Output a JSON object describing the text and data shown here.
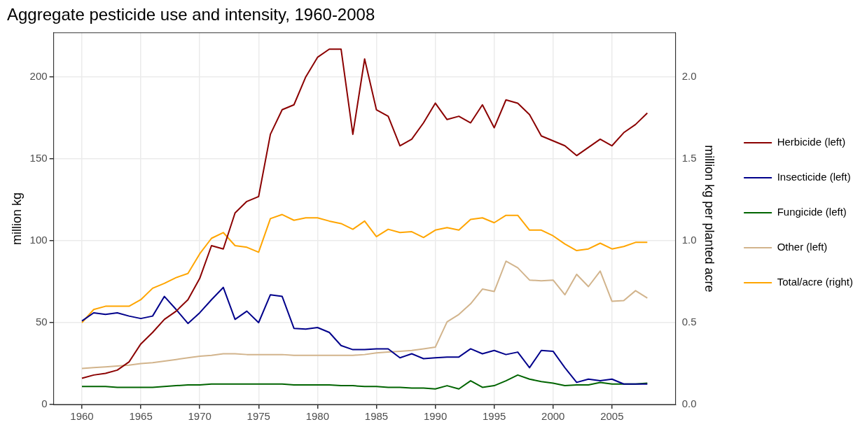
{
  "chart_data": {
    "type": "line",
    "title": "Aggregate pesticide use and intensity, 1960-2008",
    "ylabel": "million kg",
    "y2label": "million kg per planted acre",
    "x": [
      1960,
      1961,
      1962,
      1963,
      1964,
      1965,
      1966,
      1967,
      1968,
      1969,
      1970,
      1971,
      1972,
      1973,
      1974,
      1975,
      1976,
      1977,
      1978,
      1979,
      1980,
      1981,
      1982,
      1983,
      1984,
      1985,
      1986,
      1987,
      1988,
      1989,
      1990,
      1991,
      1992,
      1993,
      1994,
      1995,
      1996,
      1997,
      1998,
      1999,
      2000,
      2001,
      2002,
      2003,
      2004,
      2005,
      2006,
      2007,
      2008
    ],
    "series": [
      {
        "name": "Herbicide (left)",
        "color": "#8b0000",
        "values": [
          16,
          18,
          19,
          21,
          26,
          37,
          44,
          52,
          57,
          64,
          77,
          97,
          95,
          117,
          124,
          127,
          165,
          180,
          183,
          200,
          212,
          217,
          217,
          165,
          211,
          180,
          176,
          158,
          162,
          172,
          184,
          174,
          176,
          172,
          183,
          169,
          186,
          184,
          177,
          164,
          161,
          158,
          152,
          157,
          162,
          158,
          166,
          171,
          178
        ]
      },
      {
        "name": "Insecticide (left)",
        "color": "#00008b",
        "values": [
          51,
          56,
          55,
          56,
          54,
          52.5,
          54,
          66,
          58,
          49.5,
          56,
          64,
          71.5,
          52,
          57,
          50,
          67,
          66,
          46.5,
          46,
          47,
          44,
          36,
          33.5,
          33.5,
          34,
          34,
          28.5,
          31,
          28,
          28.5,
          29,
          29,
          34,
          31,
          33,
          30.5,
          32,
          22.5,
          33,
          32.5,
          22.5,
          13.5,
          15.5,
          14.5,
          15.5,
          12.5,
          12.5,
          12.5
        ]
      },
      {
        "name": "Fungicide (left)",
        "color": "#006400",
        "values": [
          11,
          11,
          11,
          10.5,
          10.5,
          10.5,
          10.5,
          11,
          11.5,
          12,
          12,
          12.5,
          12.5,
          12.5,
          12.5,
          12.5,
          12.5,
          12.5,
          12,
          12,
          12,
          12,
          11.5,
          11.5,
          11,
          11,
          10.5,
          10.5,
          10,
          10,
          9.5,
          11.5,
          9.5,
          14.5,
          10.5,
          11.5,
          14.5,
          18,
          15.5,
          14,
          13,
          11.5,
          12,
          12,
          13.5,
          12.5,
          12.5,
          12.5,
          13
        ]
      },
      {
        "name": "Other (left)",
        "color": "#d2b48c",
        "values": [
          22,
          22.5,
          23,
          23.5,
          24,
          25,
          25.5,
          26.5,
          27.5,
          28.5,
          29.5,
          30,
          31,
          31,
          30.5,
          30.5,
          30.5,
          30.5,
          30,
          30,
          30,
          30,
          30,
          30,
          30.5,
          31.5,
          32,
          32.5,
          33,
          34,
          35,
          50.5,
          55,
          61.5,
          70.5,
          69,
          87.5,
          83.5,
          76,
          75.5,
          76,
          67,
          79.5,
          72,
          81.5,
          63,
          63.5,
          69.5,
          65
        ]
      },
      {
        "name": "Total/acre (right)",
        "color": "#ffa500",
        "axis": "y2",
        "values": [
          0.5,
          0.58,
          0.6,
          0.6,
          0.6,
          0.64,
          0.71,
          0.74,
          0.775,
          0.8,
          0.92,
          1.015,
          1.05,
          0.97,
          0.96,
          0.93,
          1.135,
          1.16,
          1.125,
          1.14,
          1.14,
          1.12,
          1.105,
          1.07,
          1.12,
          1.025,
          1.07,
          1.05,
          1.055,
          1.02,
          1.065,
          1.08,
          1.065,
          1.13,
          1.14,
          1.11,
          1.155,
          1.155,
          1.065,
          1.065,
          1.03,
          0.98,
          0.94,
          0.95,
          0.985,
          0.95,
          0.965,
          0.99,
          0.99
        ]
      }
    ],
    "xlim": [
      1957.6,
      2010.4
    ],
    "xticks": [
      1960,
      1965,
      1970,
      1975,
      1980,
      1985,
      1990,
      1995,
      2000,
      2005
    ],
    "ylim": [
      0,
      227
    ],
    "yticks": [
      0,
      50,
      100,
      150,
      200
    ],
    "y2lim": [
      0,
      2.27
    ],
    "y2ticks": [
      {
        "value": 0,
        "label": "0.0"
      },
      {
        "value": 0.5,
        "label": "0.5"
      },
      {
        "value": 1,
        "label": "1.0"
      },
      {
        "value": 1.5,
        "label": "1.5"
      },
      {
        "value": 2,
        "label": "2.0"
      }
    ],
    "grid": true,
    "legend": "right",
    "marker": "none",
    "line_style": "solid"
  }
}
